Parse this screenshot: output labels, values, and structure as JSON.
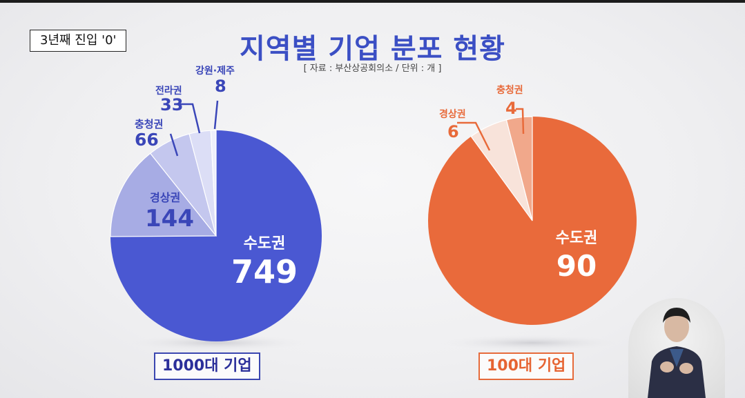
{
  "tag": "3년째 진입 '0'",
  "title": "지역별 기업 분포 현황",
  "source": "[ 자료 : 부산상공회의소  /  단위 : 개 ]",
  "chart_data": [
    {
      "type": "pie",
      "title": "1000대 기업",
      "colors": [
        "#4a58d2",
        "#a7ace4",
        "#c4c7ee",
        "#dcdef6",
        "#eeeffb"
      ],
      "label_color": "#3a46b8",
      "slices": [
        {
          "label": "수도권",
          "value": 749
        },
        {
          "label": "경상권",
          "value": 144
        },
        {
          "label": "충청권",
          "value": 66
        },
        {
          "label": "전라권",
          "value": 33
        },
        {
          "label": "강원·제주",
          "value": 8
        }
      ]
    },
    {
      "type": "pie",
      "title": "100대 기업",
      "colors": [
        "#e96a3b",
        "#f8e3da",
        "#f1a88b"
      ],
      "label_color": "#e86a3a",
      "slices": [
        {
          "label": "수도권",
          "value": 90
        },
        {
          "label": "경상권",
          "value": 6
        },
        {
          "label": "충청권",
          "value": 4
        }
      ]
    }
  ]
}
